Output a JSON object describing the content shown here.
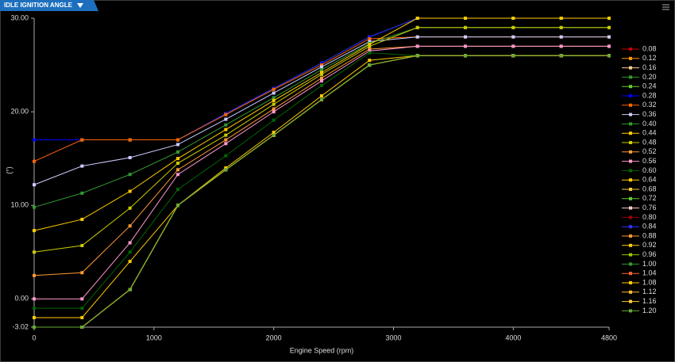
{
  "chart_data": {
    "type": "line",
    "title": "IDLE IGNITION ANGLE",
    "x_label": "Engine Speed (rpm)",
    "y_label": "(°)",
    "x": [
      0,
      400,
      800,
      1200,
      1600,
      2000,
      2400,
      2800,
      3200,
      3600,
      4000,
      4400,
      4800
    ],
    "xlim": [
      0,
      4800
    ],
    "xticks": [
      0,
      1000,
      2000,
      3000,
      4000,
      4800
    ],
    "ylim": [
      -3.02,
      30
    ],
    "yticks": [
      -3.02,
      {
        "value": 0,
        "label": "0.00"
      },
      {
        "value": 10,
        "label": "10.00"
      },
      {
        "value": 20,
        "label": "20.00"
      },
      {
        "value": 30,
        "label": "30.00"
      }
    ],
    "series": [
      {
        "name": "0.08",
        "color": "#cc0000",
        "values": [
          17,
          17,
          17,
          17,
          19.8,
          22.5,
          25.2,
          28,
          30,
          30,
          30,
          30,
          30
        ]
      },
      {
        "name": "0.12",
        "color": "#ff9900",
        "values": [
          17,
          17,
          17,
          17,
          19.8,
          22.5,
          25.2,
          28,
          30,
          30,
          30,
          30,
          30
        ]
      },
      {
        "name": "0.16",
        "color": "#ffcc99",
        "values": [
          17,
          17,
          17,
          17,
          19.8,
          22.5,
          25.2,
          28,
          30,
          30,
          30,
          30,
          30
        ]
      },
      {
        "name": "0.20",
        "color": "#339933",
        "values": [
          17,
          17,
          17,
          17,
          19.8,
          22.5,
          25.2,
          28,
          30,
          30,
          30,
          30,
          30
        ]
      },
      {
        "name": "0.24",
        "color": "#66cc33",
        "values": [
          17,
          17,
          17,
          17,
          19.8,
          22.5,
          25.2,
          28,
          30,
          30,
          30,
          30,
          30
        ]
      },
      {
        "name": "0.28",
        "color": "#0000ff",
        "values": [
          17,
          17,
          17,
          17,
          19.8,
          22.5,
          25.2,
          28,
          30,
          30,
          30,
          30,
          30
        ]
      },
      {
        "name": "0.32",
        "color": "#ff6600",
        "values": [
          14.7,
          17,
          17,
          17,
          19.7,
          22.4,
          25,
          27.8,
          28,
          28,
          28,
          28,
          28
        ]
      },
      {
        "name": "0.36",
        "color": "#ccccff",
        "values": [
          12.2,
          14.2,
          15.1,
          16.5,
          19.2,
          22,
          24.8,
          27.5,
          28,
          28,
          28,
          28,
          28
        ]
      },
      {
        "name": "0.40",
        "color": "#339933",
        "values": [
          9.8,
          11.3,
          13.3,
          15.7,
          18.6,
          21.5,
          24.5,
          27.3,
          29,
          29,
          29,
          29,
          29
        ]
      },
      {
        "name": "0.44",
        "color": "#ffcc00",
        "values": [
          7.3,
          8.5,
          11.5,
          15,
          18.1,
          21.2,
          24.2,
          27.2,
          30,
          30,
          30,
          30,
          30
        ]
      },
      {
        "name": "0.48",
        "color": "#cccc00",
        "values": [
          5,
          5.7,
          9.7,
          14.5,
          17.5,
          20.8,
          24,
          27,
          29,
          29,
          29,
          29,
          29
        ]
      },
      {
        "name": "0.52",
        "color": "#ff9933",
        "values": [
          2.5,
          2.8,
          7.8,
          13.8,
          17,
          20.3,
          23.6,
          26.7,
          27,
          27,
          27,
          27,
          27
        ]
      },
      {
        "name": "0.56",
        "color": "#ff99cc",
        "values": [
          0,
          0,
          6,
          13.3,
          16.6,
          20,
          23.3,
          26.5,
          27,
          27,
          27,
          27,
          27
        ]
      },
      {
        "name": "0.60",
        "color": "#006600",
        "values": [
          -1,
          -1,
          5,
          11.7,
          15.3,
          19.1,
          22.8,
          26.3,
          26,
          26,
          26,
          26,
          26
        ]
      },
      {
        "name": "0.64",
        "color": "#ffcc00",
        "values": [
          -2,
          -2,
          4,
          10,
          14,
          17.8,
          21.7,
          25.5,
          26,
          26,
          26,
          26,
          26
        ]
      },
      {
        "name": "0.68",
        "color": "#ffcc33",
        "values": [
          -3.02,
          -3.02,
          1,
          10,
          13.8,
          17.5,
          21.3,
          25,
          26,
          26,
          26,
          26,
          26
        ]
      },
      {
        "name": "0.72",
        "color": "#66cc33",
        "values": [
          -3.02,
          -3.02,
          1,
          10,
          13.8,
          17.5,
          21.3,
          25,
          26,
          26,
          26,
          26,
          26
        ]
      },
      {
        "name": "0.76",
        "color": "#ffcccc",
        "values": [
          -3.02,
          -3.02,
          1,
          10,
          13.8,
          17.5,
          21.3,
          25,
          26,
          26,
          26,
          26,
          26
        ]
      },
      {
        "name": "0.80",
        "color": "#990000",
        "values": [
          -3.02,
          -3.02,
          1,
          10,
          13.8,
          17.5,
          21.3,
          25,
          26,
          26,
          26,
          26,
          26
        ]
      },
      {
        "name": "0.84",
        "color": "#3333ff",
        "values": [
          -3.02,
          -3.02,
          1,
          10,
          13.8,
          17.5,
          21.3,
          25,
          26,
          26,
          26,
          26,
          26
        ]
      },
      {
        "name": "0.88",
        "color": "#ff9933",
        "values": [
          -3.02,
          -3.02,
          1,
          10,
          13.8,
          17.5,
          21.3,
          25,
          26,
          26,
          26,
          26,
          26
        ]
      },
      {
        "name": "0.92",
        "color": "#ffcc00",
        "values": [
          -3.02,
          -3.02,
          1,
          10,
          13.8,
          17.5,
          21.3,
          25,
          26,
          26,
          26,
          26,
          26
        ]
      },
      {
        "name": "0.96",
        "color": "#99cc00",
        "values": [
          -3.02,
          -3.02,
          1,
          10,
          13.8,
          17.5,
          21.3,
          25,
          26,
          26,
          26,
          26,
          26
        ]
      },
      {
        "name": "1.00",
        "color": "#339933",
        "values": [
          -3.02,
          -3.02,
          1,
          10,
          13.8,
          17.5,
          21.3,
          25,
          26,
          26,
          26,
          26,
          26
        ]
      },
      {
        "name": "1.04",
        "color": "#ff6633",
        "values": [
          -3.02,
          -3.02,
          1,
          10,
          13.8,
          17.5,
          21.3,
          25,
          26,
          26,
          26,
          26,
          26
        ]
      },
      {
        "name": "1.08",
        "color": "#ffcc00",
        "values": [
          -3.02,
          -3.02,
          1,
          10,
          13.8,
          17.5,
          21.3,
          25,
          26,
          26,
          26,
          26,
          26
        ]
      },
      {
        "name": "1.12",
        "color": "#ffbb33",
        "values": [
          -3.02,
          -3.02,
          1,
          10,
          13.8,
          17.5,
          21.3,
          25,
          26,
          26,
          26,
          26,
          26
        ]
      },
      {
        "name": "1.16",
        "color": "#ffcc33",
        "values": [
          -3.02,
          -3.02,
          1,
          10,
          13.8,
          17.5,
          21.3,
          25,
          26,
          26,
          26,
          26,
          26
        ]
      },
      {
        "name": "1.20",
        "color": "#66aa33",
        "values": [
          -3.02,
          -3.02,
          1,
          10,
          13.8,
          17.5,
          21.3,
          25,
          26,
          26,
          26,
          26,
          26
        ]
      }
    ]
  }
}
